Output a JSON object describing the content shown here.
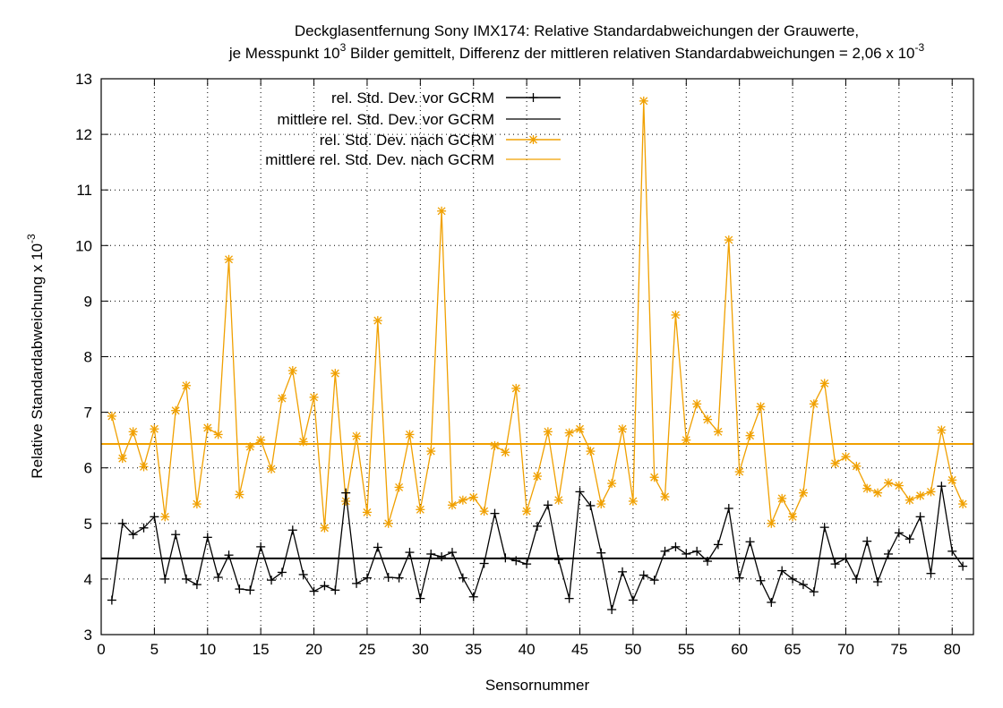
{
  "chart_data": {
    "type": "line",
    "title_line1": "Deckglasentfernung Sony IMX174: Relative Standardabweichungen der Grauwerte,",
    "title_line2_a": "je Messpunkt 10",
    "title_line2_sup": "3",
    "title_line2_b": " Bilder gemittelt, Differenz der mittleren relativen Standardabweichungen = 2,06 x 10",
    "title_line2_sup2": "-3",
    "xlabel": "Sensornummer",
    "ylabel_main": "Relative Standardabweichung x 10",
    "ylabel_sup": "-3",
    "xlim": [
      0,
      82
    ],
    "ylim": [
      3,
      13
    ],
    "xticks": [
      0,
      5,
      10,
      15,
      20,
      25,
      30,
      35,
      40,
      45,
      50,
      55,
      60,
      65,
      70,
      75,
      80
    ],
    "yticks": [
      3,
      4,
      5,
      6,
      7,
      8,
      9,
      10,
      11,
      12,
      13
    ],
    "legend_position": "top-left",
    "colors": {
      "before": "#000000",
      "after": "#f0a000"
    },
    "x": [
      1,
      2,
      3,
      4,
      5,
      6,
      7,
      8,
      9,
      10,
      11,
      12,
      13,
      14,
      15,
      16,
      17,
      18,
      19,
      20,
      21,
      22,
      23,
      24,
      25,
      26,
      27,
      28,
      29,
      30,
      31,
      32,
      33,
      34,
      35,
      36,
      37,
      38,
      39,
      40,
      41,
      42,
      43,
      44,
      45,
      46,
      47,
      48,
      49,
      50,
      51,
      52,
      53,
      54,
      55,
      56,
      57,
      58,
      59,
      60,
      61,
      62,
      63,
      64,
      65,
      66,
      67,
      68,
      69,
      70,
      71,
      72,
      73,
      74,
      75,
      76,
      77,
      78,
      79,
      80,
      81
    ],
    "series": [
      {
        "name": "rel. Std. Dev. vor GCRM",
        "marker": "plus",
        "values": [
          3.62,
          5.0,
          4.8,
          4.92,
          5.12,
          4.0,
          4.8,
          4.0,
          3.9,
          4.75,
          4.03,
          4.43,
          3.82,
          3.8,
          4.58,
          3.98,
          4.12,
          4.88,
          4.08,
          3.78,
          3.88,
          3.8,
          5.55,
          3.92,
          4.02,
          4.57,
          4.03,
          4.02,
          4.48,
          3.65,
          4.45,
          4.4,
          4.48,
          4.02,
          3.68,
          4.28,
          5.18,
          4.38,
          4.33,
          4.27,
          4.95,
          5.33,
          4.35,
          3.65,
          5.57,
          5.32,
          4.47,
          3.45,
          4.13,
          3.62,
          4.07,
          3.98,
          4.5,
          4.58,
          4.45,
          4.5,
          4.32,
          4.62,
          5.27,
          4.02,
          4.67,
          3.97,
          3.58,
          4.15,
          4.0,
          3.9,
          3.77,
          4.93,
          4.27,
          4.37,
          4.0,
          4.68,
          3.95,
          4.45,
          4.83,
          4.72,
          5.12,
          4.1,
          5.67,
          4.5,
          4.23
        ]
      },
      {
        "name": "mittlere rel. Std. Dev. vor GCRM",
        "value": 4.37
      },
      {
        "name": "rel. Std. Dev. nach GCRM",
        "marker": "star",
        "values": [
          6.93,
          6.17,
          6.65,
          6.02,
          6.7,
          5.12,
          7.03,
          7.48,
          5.35,
          6.72,
          6.6,
          9.75,
          5.52,
          6.38,
          6.5,
          5.98,
          7.25,
          7.75,
          6.47,
          7.27,
          4.92,
          7.7,
          5.4,
          6.57,
          5.2,
          8.65,
          5.0,
          5.65,
          6.6,
          5.25,
          6.3,
          10.62,
          5.33,
          5.42,
          5.47,
          5.22,
          6.4,
          6.28,
          7.43,
          5.22,
          5.85,
          6.65,
          5.42,
          6.63,
          6.7,
          6.3,
          5.35,
          5.72,
          6.7,
          5.4,
          12.6,
          5.83,
          5.48,
          8.75,
          6.5,
          7.15,
          6.87,
          6.65,
          10.1,
          5.93,
          6.58,
          7.1,
          5.0,
          5.45,
          5.12,
          5.55,
          7.15,
          7.52,
          6.08,
          6.2,
          6.03,
          5.63,
          5.55,
          5.73,
          5.68,
          5.42,
          5.5,
          5.57,
          6.68,
          5.78,
          5.35
        ]
      },
      {
        "name": "mittlere rel. Std. Dev. nach GCRM",
        "value": 6.43
      }
    ]
  }
}
